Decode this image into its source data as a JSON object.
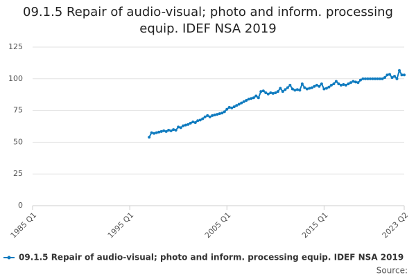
{
  "chart_data": {
    "type": "line",
    "title": "09.1.5 Repair of audio-visual; photo and inform. processing equip. IDEF NSA 2019",
    "categories": [
      "1985 Q1",
      null,
      null,
      null,
      null,
      null,
      null,
      null,
      null,
      null,
      null,
      null,
      null,
      null,
      null,
      null,
      null,
      null,
      null,
      null,
      null,
      null,
      null,
      null,
      null,
      null,
      null,
      null,
      null,
      null,
      null,
      null,
      null,
      null,
      null,
      null,
      null,
      null,
      null,
      null,
      "1995 Q1",
      null,
      null,
      null,
      null,
      null,
      null,
      null,
      null,
      null,
      null,
      null,
      null,
      null,
      null,
      null,
      null,
      null,
      null,
      null,
      null,
      null,
      null,
      null,
      null,
      null,
      null,
      null,
      null,
      null,
      null,
      null,
      null,
      null,
      null,
      null,
      null,
      null,
      null,
      null,
      "2005 Q1",
      null,
      null,
      null,
      null,
      null,
      null,
      null,
      null,
      null,
      null,
      null,
      null,
      null,
      null,
      null,
      null,
      null,
      null,
      null,
      null,
      null,
      null,
      null,
      null,
      null,
      null,
      null,
      null,
      null,
      null,
      null,
      null,
      null,
      null,
      null,
      null,
      null,
      null,
      null,
      "2015 Q1",
      null,
      null,
      null,
      null,
      null,
      null,
      null,
      null,
      null,
      null,
      null,
      null,
      null,
      null,
      null,
      null,
      null,
      null,
      null,
      null,
      null,
      null,
      null,
      null,
      null,
      null,
      null,
      null,
      null,
      null,
      null,
      null,
      "2023 Q2"
    ],
    "series": [
      {
        "name": "09.1.5 Repair of audio-visual; photo and inform. processing equip. IDEF NSA 2019",
        "color": "#0f7bbf",
        "values": [
          null,
          null,
          null,
          null,
          null,
          null,
          null,
          null,
          null,
          null,
          null,
          null,
          null,
          null,
          null,
          null,
          null,
          null,
          null,
          null,
          null,
          null,
          null,
          null,
          null,
          null,
          null,
          null,
          null,
          null,
          null,
          null,
          null,
          null,
          null,
          null,
          null,
          null,
          null,
          null,
          null,
          null,
          null,
          null,
          null,
          null,
          null,
          null,
          54,
          57.5,
          57,
          57.5,
          58,
          58.5,
          59,
          58.5,
          59.5,
          59,
          60,
          59.5,
          62,
          61.5,
          63,
          63.5,
          64,
          65,
          66,
          65.5,
          67,
          67.5,
          68.5,
          70,
          71,
          70,
          71,
          71.5,
          72,
          72.5,
          73,
          74,
          76,
          77.5,
          77,
          78,
          79,
          80,
          81,
          82,
          83,
          84,
          84.5,
          85,
          86.5,
          85,
          90,
          90.5,
          89,
          88,
          89,
          88.5,
          89,
          90,
          92.5,
          90,
          91.5,
          93,
          95,
          92,
          91,
          91.5,
          91,
          96,
          93,
          92,
          92.5,
          93,
          94,
          95,
          94,
          96,
          92,
          92.5,
          93.5,
          95,
          96,
          98,
          96,
          95,
          95.5,
          95,
          96,
          97,
          98,
          97.5,
          97,
          99,
          100,
          100,
          100,
          100,
          100,
          100,
          100,
          100,
          100,
          101,
          103,
          103.5,
          101,
          102,
          100,
          106.5,
          103,
          103
        ]
      }
    ],
    "ylim": [
      0,
      125
    ],
    "yticks": [
      0,
      25,
      50,
      75,
      100,
      125
    ],
    "grid": true,
    "source": "Source:"
  }
}
